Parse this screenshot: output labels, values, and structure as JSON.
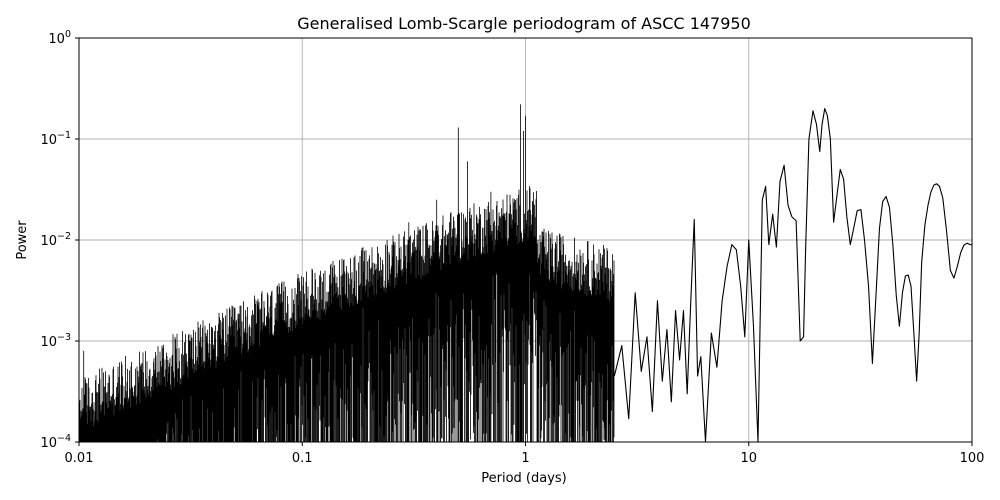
{
  "chart_data": {
    "type": "line",
    "title": "Generalised Lomb-Scargle periodogram of ASCC 147950",
    "xlabel": "Period (days)",
    "ylabel": "Power",
    "xscale": "log",
    "yscale": "log",
    "xlim": [
      0.01,
      100
    ],
    "ylim": [
      0.0001,
      1
    ],
    "grid": true,
    "x_ticks": [
      {
        "value": 0.01,
        "label": "0.01"
      },
      {
        "value": 0.1,
        "label": "0.1"
      },
      {
        "value": 1,
        "label": "1"
      },
      {
        "value": 10,
        "label": "10"
      },
      {
        "value": 100,
        "label": "100"
      }
    ],
    "y_ticks": [
      {
        "value": 0.0001,
        "base": "10",
        "exp": "−4"
      },
      {
        "value": 0.001,
        "base": "10",
        "exp": "−3"
      },
      {
        "value": 0.01,
        "base": "10",
        "exp": "−2"
      },
      {
        "value": 0.1,
        "base": "10",
        "exp": "−1"
      },
      {
        "value": 1,
        "base": "10",
        "exp": "0"
      }
    ],
    "line_color": "#000000",
    "series": [
      {
        "x": [
          2.5,
          2.7,
          2.9,
          3.1,
          3.3,
          3.5,
          3.7,
          3.9,
          4.1,
          4.3,
          4.5,
          4.7,
          4.9,
          5.1,
          5.3,
          5.5,
          5.7,
          5.9,
          6.1,
          6.4,
          6.8,
          7.2,
          7.6,
          8.0,
          8.4,
          8.8,
          9.2,
          9.6,
          10.0,
          10.5,
          11.0,
          11.5,
          11.9,
          12.3,
          12.8,
          13.3,
          13.8,
          14.4,
          15.0,
          15.6,
          16.3,
          17.0,
          17.6,
          18.0,
          18.6,
          19.4,
          20.1,
          20.8,
          21.3,
          21.9,
          22.5,
          23.2,
          24.0,
          24.8,
          25.7,
          26.6,
          27.5,
          28.5,
          29.5,
          30.6,
          31.8,
          33.0,
          34.4,
          35.8,
          37.2,
          38.5,
          39.8,
          41.2,
          42.7,
          44.2,
          45.8,
          47.3,
          48.8,
          50.3,
          51.8,
          53.3,
          54.9,
          56.5,
          58.0,
          59.5,
          61.5,
          63.5,
          65.5,
          67.5,
          69.5,
          71.5,
          74.0,
          77.0,
          80.0,
          83.0,
          86.0,
          89.0,
          92.0,
          95.0,
          98.0,
          100.0
        ],
        "y": [
          0.00045,
          0.0009,
          0.00017,
          0.003,
          0.0005,
          0.0011,
          0.0002,
          0.0025,
          0.0004,
          0.0013,
          0.00025,
          0.002,
          0.00065,
          0.002,
          0.0003,
          0.0025,
          0.016,
          0.00045,
          0.0007,
          0.0001,
          0.0012,
          0.00055,
          0.0025,
          0.0055,
          0.009,
          0.008,
          0.0035,
          0.0011,
          0.01,
          0.0014,
          0.0001,
          0.025,
          0.034,
          0.009,
          0.018,
          0.0085,
          0.038,
          0.055,
          0.022,
          0.017,
          0.0155,
          0.001,
          0.0011,
          0.009,
          0.1,
          0.19,
          0.14,
          0.075,
          0.14,
          0.2,
          0.17,
          0.1,
          0.015,
          0.027,
          0.05,
          0.04,
          0.017,
          0.009,
          0.013,
          0.0195,
          0.02,
          0.01,
          0.0035,
          0.0006,
          0.003,
          0.013,
          0.024,
          0.027,
          0.021,
          0.009,
          0.0028,
          0.0014,
          0.003,
          0.0044,
          0.0045,
          0.0035,
          0.0012,
          0.0004,
          0.0012,
          0.006,
          0.014,
          0.022,
          0.03,
          0.035,
          0.036,
          0.034,
          0.026,
          0.012,
          0.005,
          0.0042,
          0.0055,
          0.0075,
          0.0089,
          0.0093,
          0.009,
          0.009
        ]
      }
    ]
  }
}
